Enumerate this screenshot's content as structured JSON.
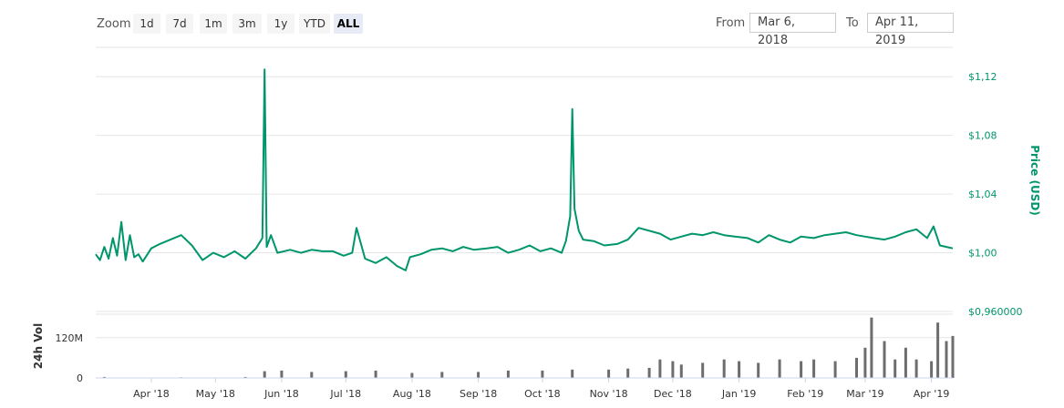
{
  "toolbar": {
    "zoom_label": "Zoom",
    "zoom_buttons": [
      "1d",
      "7d",
      "1m",
      "3m",
      "1y",
      "YTD",
      "ALL"
    ],
    "active_zoom": "ALL",
    "from_label": "From",
    "from_value": "Mar 6, 2018",
    "to_label": "To",
    "to_value": "Apr 11, 2019"
  },
  "colors": {
    "price_line": "#00956b",
    "price_axis_text": "#00956b",
    "volume_bar": "#6d6d6d",
    "gridline": "#e6e6e6"
  },
  "chart_data": [
    {
      "type": "line",
      "ylabel": "Price (USD)",
      "ylim": [
        0.96,
        1.14
      ],
      "y_ticks": [
        0.96,
        1.0,
        1.04,
        1.08,
        1.12
      ],
      "y_tick_labels": [
        "$0,960000",
        "$1,00",
        "$1,04",
        "$1,08",
        "$1,12"
      ],
      "y_axis_position": "right",
      "grid": true,
      "x_range": [
        "2018-03-06",
        "2019-04-11"
      ],
      "x_tick_labels": [
        "Apr '18",
        "May '18",
        "Jun '18",
        "Jul '18",
        "Aug '18",
        "Sep '18",
        "Oct '18",
        "Nov '18",
        "Dec '18",
        "Jan '19",
        "Feb '19",
        "Mar '19",
        "Apr '19"
      ],
      "x_tick_dates": [
        "2018-04-01",
        "2018-05-01",
        "2018-06-01",
        "2018-07-01",
        "2018-08-01",
        "2018-09-01",
        "2018-10-01",
        "2018-11-01",
        "2018-12-01",
        "2019-01-01",
        "2019-02-01",
        "2019-03-01",
        "2019-04-01"
      ],
      "series": [
        {
          "x": [
            "2018-03-06",
            "2018-03-08",
            "2018-03-10",
            "2018-03-12",
            "2018-03-14",
            "2018-03-16",
            "2018-03-18",
            "2018-03-20",
            "2018-03-22",
            "2018-03-24",
            "2018-03-26",
            "2018-03-28",
            "2018-04-01",
            "2018-04-05",
            "2018-04-10",
            "2018-04-15",
            "2018-04-20",
            "2018-04-25",
            "2018-04-30",
            "2018-05-05",
            "2018-05-10",
            "2018-05-15",
            "2018-05-20",
            "2018-05-23",
            "2018-05-24",
            "2018-05-25",
            "2018-05-27",
            "2018-05-30",
            "2018-06-05",
            "2018-06-10",
            "2018-06-15",
            "2018-06-20",
            "2018-06-25",
            "2018-06-30",
            "2018-07-04",
            "2018-07-06",
            "2018-07-10",
            "2018-07-15",
            "2018-07-20",
            "2018-07-25",
            "2018-07-29",
            "2018-07-31",
            "2018-08-05",
            "2018-08-10",
            "2018-08-15",
            "2018-08-20",
            "2018-08-25",
            "2018-08-30",
            "2018-09-05",
            "2018-09-10",
            "2018-09-15",
            "2018-09-20",
            "2018-09-25",
            "2018-09-30",
            "2018-10-05",
            "2018-10-10",
            "2018-10-12",
            "2018-10-14",
            "2018-10-15",
            "2018-10-16",
            "2018-10-18",
            "2018-10-20",
            "2018-10-25",
            "2018-10-30",
            "2018-11-05",
            "2018-11-10",
            "2018-11-15",
            "2018-11-20",
            "2018-11-25",
            "2018-11-30",
            "2018-12-05",
            "2018-12-10",
            "2018-12-15",
            "2018-12-20",
            "2018-12-25",
            "2018-12-30",
            "2019-01-05",
            "2019-01-10",
            "2019-01-15",
            "2019-01-20",
            "2019-01-25",
            "2019-01-30",
            "2019-02-05",
            "2019-02-10",
            "2019-02-15",
            "2019-02-20",
            "2019-02-25",
            "2019-03-01",
            "2019-03-05",
            "2019-03-10",
            "2019-03-15",
            "2019-03-20",
            "2019-03-25",
            "2019-03-30",
            "2019-04-02",
            "2019-04-05",
            "2019-04-08",
            "2019-04-11"
          ],
          "y": [
            0.999,
            0.995,
            1.004,
            0.996,
            1.01,
            0.998,
            1.021,
            0.995,
            1.012,
            0.997,
            0.999,
            0.994,
            1.003,
            1.006,
            1.009,
            1.012,
            1.005,
            0.995,
            1.0,
            0.997,
            1.001,
            0.996,
            1.003,
            1.01,
            1.125,
            1.004,
            1.012,
            1.0,
            1.002,
            1.0,
            1.002,
            1.001,
            1.001,
            0.998,
            1.0,
            1.017,
            0.996,
            0.993,
            0.997,
            0.991,
            0.988,
            0.997,
            0.999,
            1.002,
            1.003,
            1.001,
            1.004,
            1.002,
            1.003,
            1.004,
            1.0,
            1.002,
            1.005,
            1.001,
            1.003,
            1.0,
            1.008,
            1.025,
            1.098,
            1.03,
            1.015,
            1.009,
            1.008,
            1.005,
            1.006,
            1.009,
            1.017,
            1.015,
            1.013,
            1.009,
            1.011,
            1.013,
            1.012,
            1.014,
            1.012,
            1.011,
            1.01,
            1.007,
            1.012,
            1.009,
            1.007,
            1.011,
            1.01,
            1.012,
            1.013,
            1.014,
            1.012,
            1.011,
            1.01,
            1.009,
            1.011,
            1.014,
            1.016,
            1.01,
            1.018,
            1.005,
            1.004,
            1.003
          ]
        }
      ]
    },
    {
      "type": "bar",
      "ylabel": "24h Vol",
      "y_ticks": [
        0,
        120000000
      ],
      "y_tick_labels": [
        "0",
        "120M"
      ],
      "y_axis_position": "left",
      "bar_color": "#6d6d6d",
      "x": [
        "2018-03-10",
        "2018-04-15",
        "2018-05-15",
        "2018-05-24",
        "2018-06-01",
        "2018-06-15",
        "2018-07-01",
        "2018-07-15",
        "2018-08-01",
        "2018-08-15",
        "2018-09-01",
        "2018-09-15",
        "2018-10-01",
        "2018-10-15",
        "2018-11-01",
        "2018-11-10",
        "2018-11-20",
        "2018-11-25",
        "2018-12-01",
        "2018-12-05",
        "2018-12-15",
        "2018-12-25",
        "2019-01-01",
        "2019-01-10",
        "2019-01-20",
        "2019-01-30",
        "2019-02-05",
        "2019-02-15",
        "2019-02-25",
        "2019-03-01",
        "2019-03-04",
        "2019-03-10",
        "2019-03-15",
        "2019-03-20",
        "2019-03-25",
        "2019-04-01",
        "2019-04-04",
        "2019-04-08",
        "2019-04-11"
      ],
      "values": [
        3000000,
        2000000,
        3000000,
        20000000,
        22000000,
        18000000,
        20000000,
        22000000,
        15000000,
        18000000,
        18000000,
        22000000,
        22000000,
        25000000,
        25000000,
        28000000,
        30000000,
        55000000,
        50000000,
        40000000,
        45000000,
        55000000,
        50000000,
        45000000,
        55000000,
        50000000,
        55000000,
        50000000,
        60000000,
        90000000,
        180000000,
        110000000,
        55000000,
        90000000,
        55000000,
        50000000,
        165000000,
        110000000,
        125000000
      ]
    }
  ]
}
